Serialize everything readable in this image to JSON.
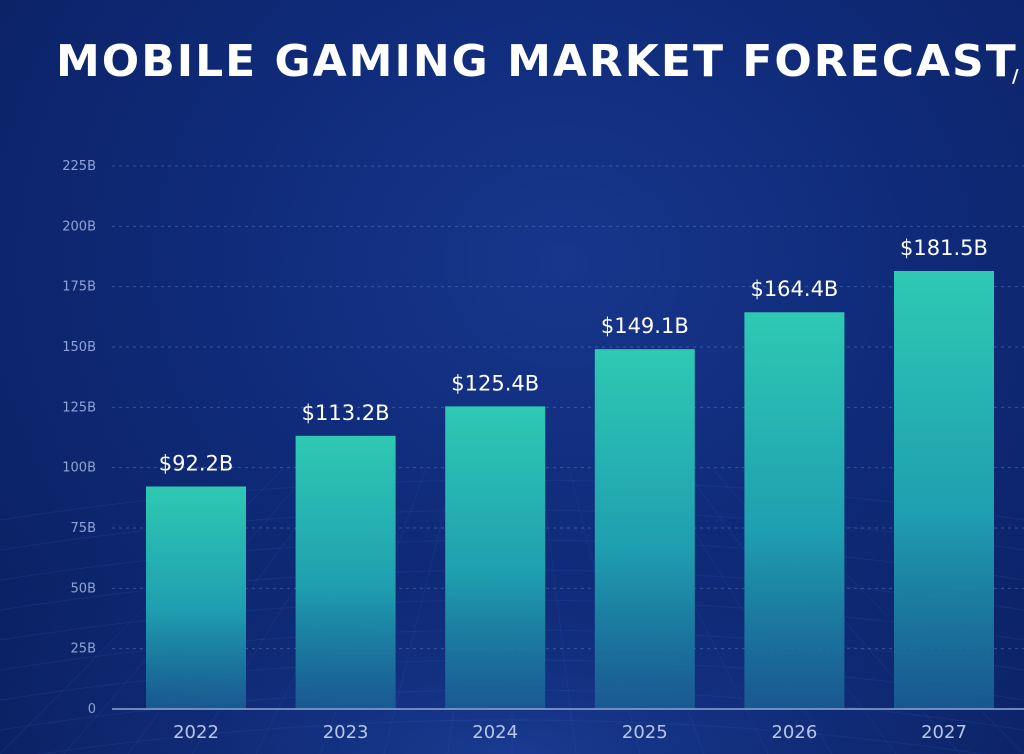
{
  "chart_data": {
    "type": "bar",
    "title": "MOBILE GAMING MARKET FORECAST",
    "categories": [
      "2022",
      "2023",
      "2024",
      "2025",
      "2026",
      "2027"
    ],
    "values": [
      92.2,
      113.2,
      125.4,
      149.1,
      164.4,
      181.5
    ],
    "data_labels": [
      "$92.2B",
      "$113.2B",
      "$125.4B",
      "$149.1B",
      "$164.4B",
      "$181.5B"
    ],
    "yticks": [
      0,
      25,
      50,
      75,
      100,
      125,
      150,
      175,
      200,
      225
    ],
    "ytick_labels": [
      "0",
      "25B",
      "50B",
      "75B",
      "100B",
      "125B",
      "150B",
      "175B",
      "200B",
      "225B"
    ],
    "ylim": [
      0,
      225
    ],
    "grid": true,
    "colors": {
      "bar_top": "#2ec9b3",
      "bar_bottom": "#1a6f9e",
      "background": "#0f2a78",
      "grid": "#5a74b8"
    }
  }
}
